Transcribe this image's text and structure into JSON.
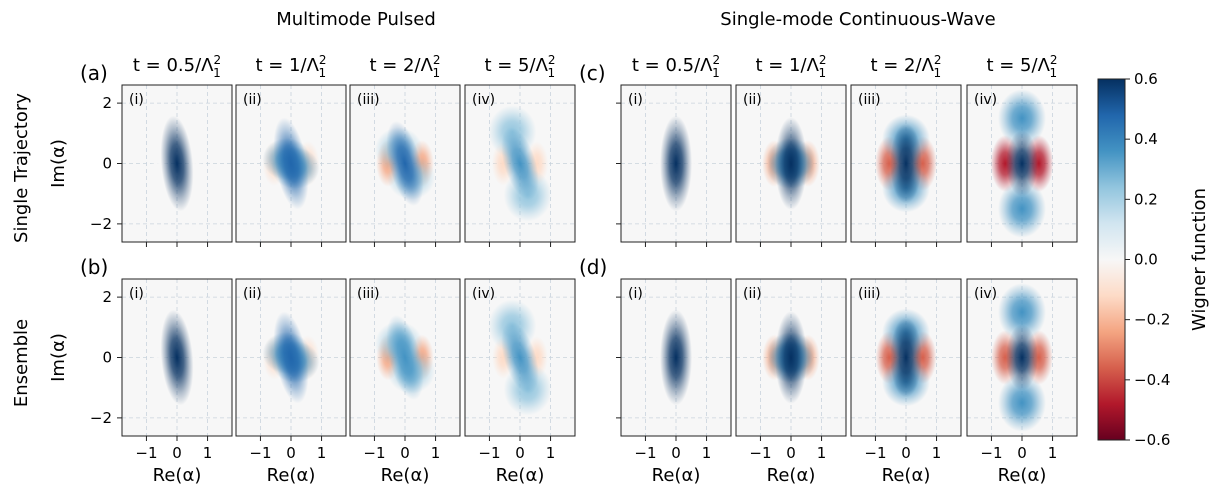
{
  "headers": {
    "left": "Multimode Pulsed",
    "right": "Single-mode Continuous-Wave"
  },
  "row_labels": [
    "Single Trajectory",
    "Ensemble"
  ],
  "panel_labels": [
    "(a)",
    "(b)",
    "(c)",
    "(d)"
  ],
  "sub_labels": [
    "(i)",
    "(ii)",
    "(iii)",
    "(iv)"
  ],
  "time_labels": [
    {
      "pre": "t = 0.5/Λ",
      "sup": "2",
      "sub": "1"
    },
    {
      "pre": "t = 1/Λ",
      "sup": "2",
      "sub": "1"
    },
    {
      "pre": "t = 2/Λ",
      "sup": "2",
      "sub": "1"
    },
    {
      "pre": "t = 5/Λ",
      "sup": "2",
      "sub": "1"
    }
  ],
  "xlabel": "Re(α)",
  "ylabel": "Im(α)",
  "x_ticks": [
    "−1",
    "0",
    "1"
  ],
  "y_ticks": [
    "2",
    "0",
    "−2"
  ],
  "colorbar": {
    "label": "Wigner function",
    "ticks": [
      "0.6",
      "0.4",
      "0.2",
      "0.0",
      "−0.2",
      "−0.4",
      "−0.6"
    ],
    "min": -0.6,
    "max": 0.6,
    "colors": [
      "#67001f",
      "#b2182b",
      "#d6604d",
      "#f4a582",
      "#fddbc7",
      "#f7f7f7",
      "#d1e5f0",
      "#92c5de",
      "#4393c3",
      "#2166ac",
      "#053061"
    ]
  },
  "chart_data": {
    "type": "heatmap",
    "title": "",
    "x_range": [
      -1.8,
      1.8
    ],
    "y_range": [
      -2.6,
      2.6
    ],
    "x_tick_values": [
      -1,
      0,
      1
    ],
    "y_tick_values": [
      2,
      0,
      -2
    ],
    "times": [
      "0.5/Λ1²",
      "1/Λ1²",
      "2/Λ1²",
      "5/Λ1²"
    ],
    "panels": [
      {
        "label": "(a)",
        "group": "Multimode Pulsed",
        "row": "Single Trajectory",
        "tilt": [
          0.12,
          0.24,
          0.34,
          0.42
        ],
        "peak": [
          0.6,
          0.5,
          0.42,
          0.34
        ],
        "neg_min": [
          -0.04,
          -0.18,
          -0.22,
          -0.16
        ],
        "lobe_sep": [
          0.0,
          0.15,
          0.45,
          1.05
        ]
      },
      {
        "label": "(b)",
        "group": "Multimode Pulsed",
        "row": "Ensemble",
        "tilt": [
          0.12,
          0.24,
          0.34,
          0.42
        ],
        "peak": [
          0.6,
          0.5,
          0.4,
          0.32
        ],
        "neg_min": [
          -0.04,
          -0.17,
          -0.2,
          -0.12
        ],
        "lobe_sep": [
          0.0,
          0.15,
          0.45,
          1.05
        ]
      },
      {
        "label": "(c)",
        "group": "Single-mode Continuous-Wave",
        "row": "Single Trajectory",
        "tilt": [
          0,
          0,
          0,
          0
        ],
        "peak": [
          0.6,
          0.6,
          0.58,
          0.56
        ],
        "neg_min": [
          -0.05,
          -0.22,
          -0.4,
          -0.45
        ],
        "lobe_sep": [
          0.0,
          0.15,
          0.8,
          1.5
        ]
      },
      {
        "label": "(d)",
        "group": "Single-mode Continuous-Wave",
        "row": "Ensemble",
        "tilt": [
          0,
          0,
          0,
          0
        ],
        "peak": [
          0.6,
          0.6,
          0.56,
          0.54
        ],
        "neg_min": [
          -0.05,
          -0.2,
          -0.36,
          -0.4
        ],
        "lobe_sep": [
          0.0,
          0.15,
          0.8,
          1.5
        ]
      }
    ]
  }
}
